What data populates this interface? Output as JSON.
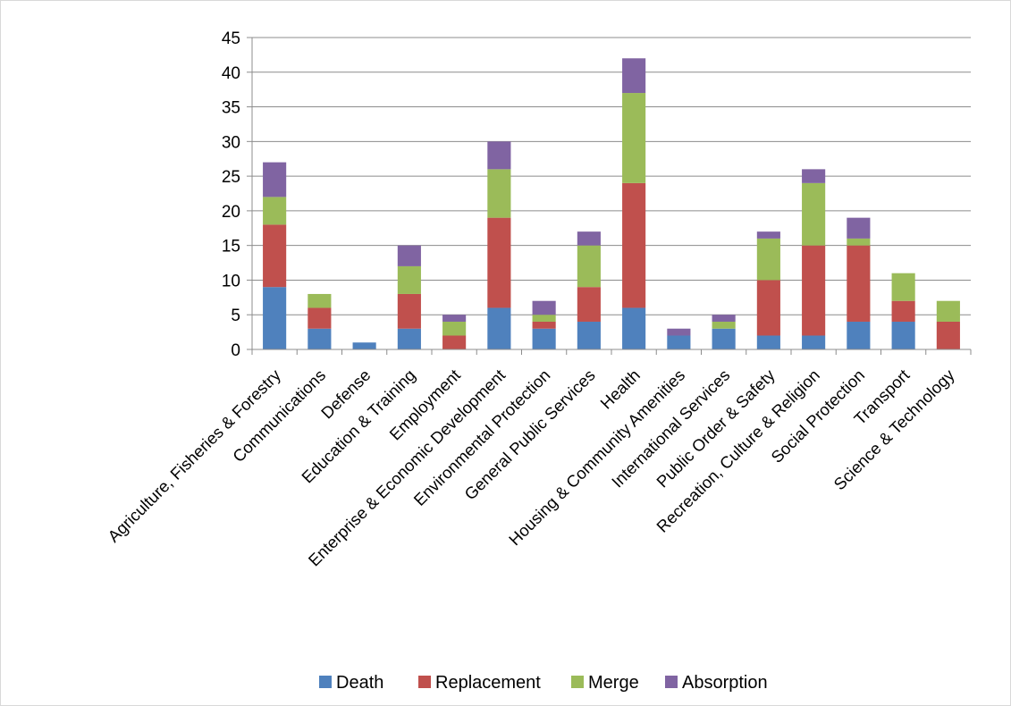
{
  "chart_data": {
    "type": "bar",
    "stacked": true,
    "title": "",
    "xlabel": "",
    "ylabel": "",
    "ylim": [
      0,
      45
    ],
    "yticks": [
      0,
      5,
      10,
      15,
      20,
      25,
      30,
      35,
      40,
      45
    ],
    "grid": true,
    "legend_position": "bottom",
    "categories": [
      "Agriculture, Fisheries & Forestry",
      "Communications",
      "Defense",
      "Education & Training",
      "Employment",
      "Enterprise & Economic Development",
      "Environmental Protection",
      "General Public Services",
      "Health",
      "Housing & Community Amenities",
      "International Services",
      "Public Order & Safety",
      "Recreation, Culture & Religion",
      "Social Protection",
      "Transport",
      "Science & Technology"
    ],
    "series": [
      {
        "name": "Death",
        "color": "#4f81bd",
        "values": [
          9,
          3,
          1,
          3,
          0,
          6,
          3,
          4,
          6,
          2,
          3,
          2,
          2,
          4,
          4,
          0
        ]
      },
      {
        "name": "Replacement",
        "color": "#c0504d",
        "values": [
          9,
          3,
          0,
          5,
          2,
          13,
          1,
          5,
          18,
          0,
          0,
          8,
          13,
          11,
          3,
          4
        ]
      },
      {
        "name": "Merge",
        "color": "#9bbb59",
        "values": [
          4,
          2,
          0,
          4,
          2,
          7,
          1,
          6,
          13,
          0,
          1,
          6,
          9,
          1,
          4,
          3
        ]
      },
      {
        "name": "Absorption",
        "color": "#8064a2",
        "values": [
          5,
          0,
          0,
          3,
          1,
          4,
          2,
          2,
          5,
          1,
          1,
          1,
          2,
          3,
          0,
          0
        ]
      }
    ]
  }
}
